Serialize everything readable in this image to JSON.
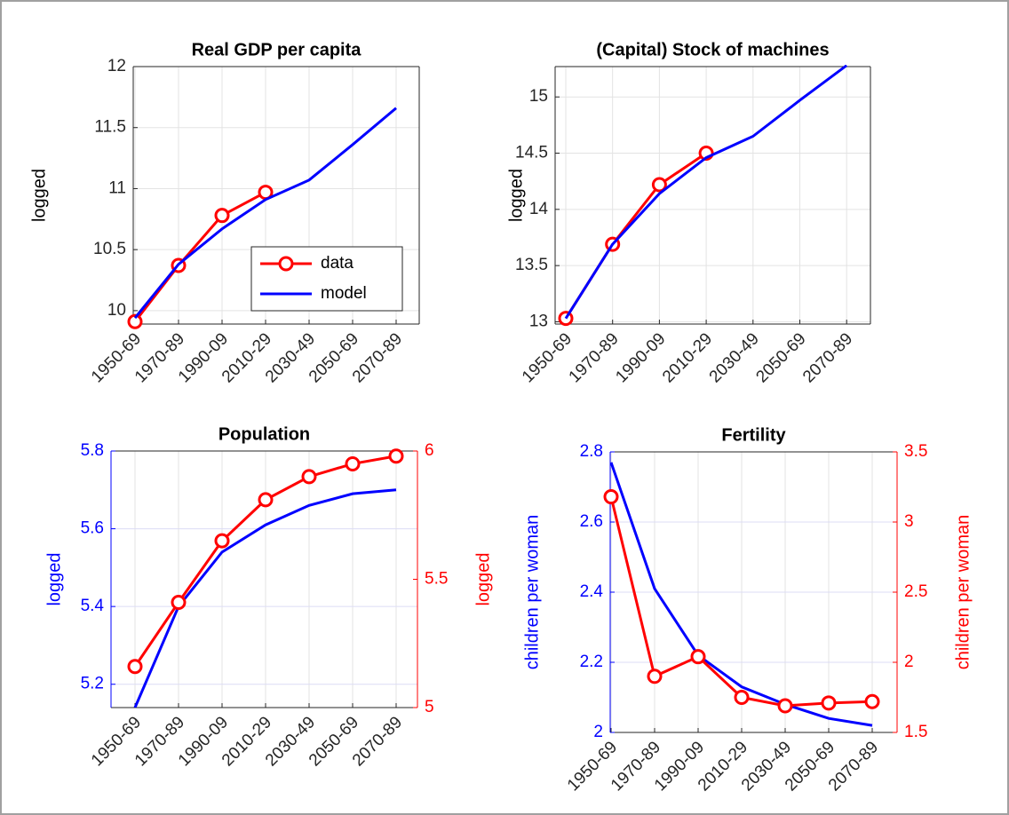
{
  "chart_data": [
    {
      "type": "line",
      "title": "Real GDP per capita",
      "ylabel": "logged",
      "categories": [
        "1950-69",
        "1970-89",
        "1990-09",
        "2010-29",
        "2030-49",
        "2050-69",
        "2070-89"
      ],
      "series": [
        {
          "name": "data",
          "color": "#ff0000",
          "marker": "circle",
          "values": [
            9.91,
            10.37,
            10.78,
            10.97,
            null,
            null,
            null
          ]
        },
        {
          "name": "model",
          "color": "#0000ff",
          "values": [
            9.94,
            10.38,
            10.67,
            10.91,
            11.07,
            11.36,
            11.66
          ]
        }
      ],
      "ylim": [
        9.89,
        12
      ],
      "yticks": [
        10,
        10.5,
        11,
        11.5,
        12
      ],
      "grid": true,
      "legend": "lower right"
    },
    {
      "type": "line",
      "title": "(Capital) Stock of machines",
      "ylabel": "logged",
      "categories": [
        "1950-69",
        "1970-89",
        "1990-09",
        "2010-29",
        "2030-49",
        "2050-69",
        "2070-89"
      ],
      "series": [
        {
          "color": "#ff0000",
          "marker": "circle",
          "values": [
            13.03,
            13.69,
            14.22,
            14.5,
            null,
            null,
            null
          ]
        },
        {
          "color": "#0000ff",
          "values": [
            13.03,
            13.69,
            14.14,
            14.46,
            14.65,
            14.97,
            15.28
          ]
        }
      ],
      "ylim": [
        12.98,
        15.27
      ],
      "yticks": [
        13,
        13.5,
        14,
        14.5,
        15
      ],
      "grid": true
    },
    {
      "type": "line",
      "title": "Population",
      "ylabel": "logged",
      "y2label": "logged",
      "categories": [
        "1950-69",
        "1970-89",
        "1990-09",
        "2010-29",
        "2030-49",
        "2050-69",
        "2070-89"
      ],
      "series": [
        {
          "color": "#0000ff",
          "values": [
            5.14,
            5.4,
            5.54,
            5.61,
            5.66,
            5.69,
            5.7
          ]
        },
        {
          "color": "#ff0000",
          "marker": "circle",
          "axis": "y2",
          "values": [
            5.16,
            5.41,
            5.65,
            5.81,
            5.9,
            5.95,
            5.98
          ]
        }
      ],
      "ylim": [
        5.14,
        5.8
      ],
      "yticks": [
        5.2,
        5.4,
        5.6,
        5.8
      ],
      "y2lim": [
        5,
        6
      ],
      "y2ticks": [
        5,
        5.5,
        6
      ],
      "grid": true
    },
    {
      "type": "line",
      "title": "Fertility",
      "ylabel": "children per woman",
      "y2label": "children per woman",
      "categories": [
        "1950-69",
        "1970-89",
        "1990-09",
        "2010-29",
        "2030-49",
        "2050-69",
        "2070-89"
      ],
      "series": [
        {
          "color": "#0000ff",
          "values": [
            2.77,
            2.41,
            2.22,
            2.13,
            2.08,
            2.04,
            2.02
          ]
        },
        {
          "color": "#ff0000",
          "marker": "circle",
          "axis": "y2",
          "values": [
            3.18,
            1.9,
            2.04,
            1.75,
            1.69,
            1.71,
            1.72
          ]
        }
      ],
      "ylim": [
        2,
        2.8
      ],
      "yticks": [
        2,
        2.2,
        2.4,
        2.6,
        2.8
      ],
      "y2lim": [
        1.5,
        3.5
      ],
      "y2ticks": [
        1.5,
        2,
        2.5,
        3,
        3.5
      ],
      "grid": true
    }
  ]
}
